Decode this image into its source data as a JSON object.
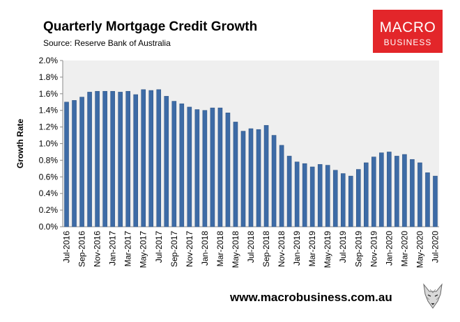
{
  "header": {
    "title": "Quarterly Mortgage Credit Growth",
    "subtitle": "Source: Reserve Bank of Australia"
  },
  "logo": {
    "line1": "MACRO",
    "line2": "BUSINESS"
  },
  "footer": {
    "url": "www.macrobusiness.com.au"
  },
  "colors": {
    "bar": "#3d6ba6",
    "bar_edge": "#2b4f7e",
    "plot_bg": "#efefef",
    "logo_bg": "#e3262a"
  },
  "chart_data": {
    "type": "bar",
    "title": "Quarterly Mortgage Credit Growth",
    "ylabel": "Growth Rate",
    "xlabel": "",
    "ylim": [
      0,
      0.02
    ],
    "yticks": [
      "0.0%",
      "0.2%",
      "0.4%",
      "0.6%",
      "0.8%",
      "1.0%",
      "1.2%",
      "1.4%",
      "1.6%",
      "1.8%",
      "2.0%"
    ],
    "grid": false,
    "categories": [
      "Jul-2016",
      "Aug-2016",
      "Sep-2016",
      "Oct-2016",
      "Nov-2016",
      "Dec-2016",
      "Jan-2017",
      "Feb-2017",
      "Mar-2017",
      "Apr-2017",
      "May-2017",
      "Jun-2017",
      "Jul-2017",
      "Aug-2017",
      "Sep-2017",
      "Oct-2017",
      "Nov-2017",
      "Dec-2017",
      "Jan-2018",
      "Feb-2018",
      "Mar-2018",
      "Apr-2018",
      "May-2018",
      "Jun-2018",
      "Jul-2018",
      "Aug-2018",
      "Sep-2018",
      "Oct-2018",
      "Nov-2018",
      "Dec-2018",
      "Jan-2019",
      "Feb-2019",
      "Mar-2019",
      "Apr-2019",
      "May-2019",
      "Jun-2019",
      "Jul-2019",
      "Aug-2019",
      "Sep-2019",
      "Oct-2019",
      "Nov-2019",
      "Dec-2019",
      "Jan-2020",
      "Feb-2020",
      "Mar-2020",
      "Apr-2020",
      "May-2020",
      "Jun-2020",
      "Jul-2020"
    ],
    "tick_labels": [
      "Jul-2016",
      "",
      "Sep-2016",
      "",
      "Nov-2016",
      "",
      "Jan-2017",
      "",
      "Mar-2017",
      "",
      "May-2017",
      "",
      "Jul-2017",
      "",
      "Sep-2017",
      "",
      "Nov-2017",
      "",
      "Jan-2018",
      "",
      "Mar-2018",
      "",
      "May-2018",
      "",
      "Jul-2018",
      "",
      "Sep-2018",
      "",
      "Nov-2018",
      "",
      "Jan-2019",
      "",
      "Mar-2019",
      "",
      "May-2019",
      "",
      "Jul-2019",
      "",
      "Sep-2019",
      "",
      "Nov-2019",
      "",
      "Jan-2020",
      "",
      "Mar-2020",
      "",
      "May-2020",
      "",
      "Jul-2020"
    ],
    "values": [
      0.015,
      0.0152,
      0.0156,
      0.0162,
      0.0163,
      0.0163,
      0.0163,
      0.0162,
      0.0163,
      0.0159,
      0.0165,
      0.0164,
      0.0165,
      0.0157,
      0.0151,
      0.0148,
      0.0144,
      0.0141,
      0.014,
      0.0143,
      0.0143,
      0.0137,
      0.0126,
      0.0115,
      0.0118,
      0.0117,
      0.0122,
      0.011,
      0.0098,
      0.0085,
      0.0078,
      0.0076,
      0.0072,
      0.0075,
      0.0074,
      0.0068,
      0.0064,
      0.0061,
      0.0069,
      0.0077,
      0.0084,
      0.0089,
      0.009,
      0.0085,
      0.0087,
      0.0081,
      0.0077,
      0.0065,
      0.0061
    ]
  }
}
